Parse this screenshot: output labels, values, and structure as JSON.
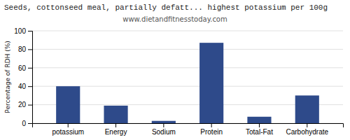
{
  "chart_data": {
    "type": "bar",
    "title": "Seeds, cottonseed meal, partially defatt... highest potassium per 100g",
    "subtitle": "www.dietandfitnesstoday.com",
    "categories": [
      "potassium",
      "Energy",
      "Sodium",
      "Protein",
      "Total-Fat",
      "Carbohydrate"
    ],
    "values": [
      40,
      19,
      2.5,
      87,
      7,
      30
    ],
    "color": "#2e4a8a",
    "ylabel": "Percentage of RDH (%)",
    "ylim": [
      0,
      100
    ],
    "yticks": [
      0,
      20,
      40,
      60,
      80,
      100
    ],
    "grid": true
  }
}
